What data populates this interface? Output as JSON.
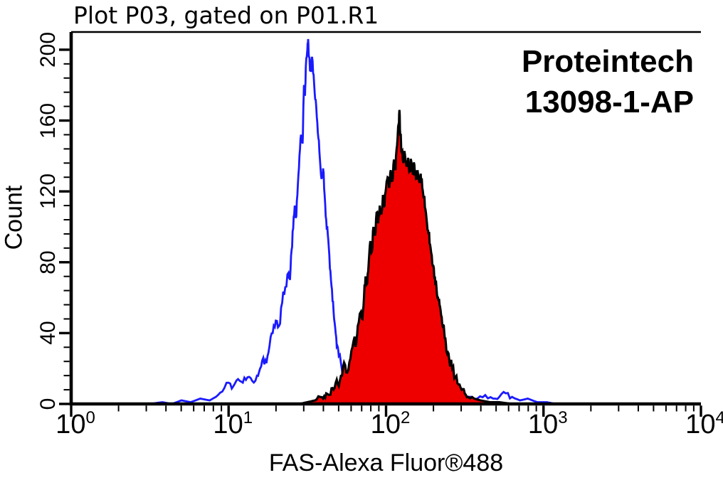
{
  "annotations": {
    "brand": "Proteintech",
    "catalog": "13098-1-AP"
  },
  "chart_data": {
    "type": "area",
    "title": "Plot P03, gated on P01.R1",
    "xlabel": "FAS-Alexa Fluor®488",
    "ylabel": "Count",
    "x_scale": "log10",
    "xlim_log10": [
      0,
      4
    ],
    "ylim": [
      0,
      210
    ],
    "x_tick_base": "10",
    "x_ticks_log10": [
      0,
      1,
      2,
      3,
      4
    ],
    "y_ticks": [
      0,
      40,
      80,
      120,
      160,
      200
    ],
    "y_minor_step": 8,
    "grid": false,
    "legend": null,
    "annotations": [
      "Proteintech",
      "13098-1-AP"
    ],
    "colors": {
      "control": "#1a1aff",
      "sample_fill": "#ee0000",
      "sample_stroke": "#000000",
      "axis": "#000000"
    },
    "series": [
      {
        "name": "control (unfilled blue)",
        "style": "line",
        "color": "#1a1aff",
        "points_log10x_count": [
          [
            0.5,
            0
          ],
          [
            0.58,
            1
          ],
          [
            0.64,
            0
          ],
          [
            0.7,
            2
          ],
          [
            0.76,
            1
          ],
          [
            0.82,
            3
          ],
          [
            0.88,
            2
          ],
          [
            0.92,
            4
          ],
          [
            0.96,
            7
          ],
          [
            1.0,
            12
          ],
          [
            1.03,
            10
          ],
          [
            1.06,
            14
          ],
          [
            1.09,
            12
          ],
          [
            1.12,
            15
          ],
          [
            1.15,
            13
          ],
          [
            1.18,
            16
          ],
          [
            1.2,
            20
          ],
          [
            1.22,
            26
          ],
          [
            1.24,
            23
          ],
          [
            1.26,
            33
          ],
          [
            1.28,
            40
          ],
          [
            1.3,
            47
          ],
          [
            1.32,
            44
          ],
          [
            1.34,
            57
          ],
          [
            1.36,
            66
          ],
          [
            1.38,
            74
          ],
          [
            1.39,
            70
          ],
          [
            1.4,
            87
          ],
          [
            1.41,
            99
          ],
          [
            1.42,
            112
          ],
          [
            1.43,
            106
          ],
          [
            1.44,
            124
          ],
          [
            1.45,
            140
          ],
          [
            1.46,
            152
          ],
          [
            1.47,
            147
          ],
          [
            1.475,
            168
          ],
          [
            1.48,
            180
          ],
          [
            1.485,
            174
          ],
          [
            1.49,
            190
          ],
          [
            1.5,
            200
          ],
          [
            1.505,
            206
          ],
          [
            1.51,
            196
          ],
          [
            1.52,
            188
          ],
          [
            1.53,
            196
          ],
          [
            1.54,
            186
          ],
          [
            1.55,
            172
          ],
          [
            1.56,
            162
          ],
          [
            1.57,
            150
          ],
          [
            1.58,
            138
          ],
          [
            1.59,
            127
          ],
          [
            1.6,
            133
          ],
          [
            1.61,
            118
          ],
          [
            1.62,
            104
          ],
          [
            1.63,
            96
          ],
          [
            1.64,
            84
          ],
          [
            1.65,
            70
          ],
          [
            1.66,
            58
          ],
          [
            1.67,
            48
          ],
          [
            1.68,
            40
          ],
          [
            1.69,
            33
          ],
          [
            1.7,
            27
          ],
          [
            1.72,
            19
          ],
          [
            1.74,
            13
          ],
          [
            1.76,
            9
          ],
          [
            1.78,
            7
          ],
          [
            1.8,
            5
          ],
          [
            1.84,
            4
          ],
          [
            1.88,
            3
          ],
          [
            1.93,
            2
          ],
          [
            2.0,
            2
          ],
          [
            2.06,
            3
          ],
          [
            2.12,
            2
          ],
          [
            2.2,
            3
          ],
          [
            2.3,
            2
          ],
          [
            2.4,
            3
          ],
          [
            2.48,
            2
          ],
          [
            2.52,
            4
          ],
          [
            2.58,
            3
          ],
          [
            2.63,
            5
          ],
          [
            2.68,
            3
          ],
          [
            2.72,
            4
          ],
          [
            2.76,
            6
          ],
          [
            2.8,
            4
          ],
          [
            2.85,
            2
          ],
          [
            2.9,
            3
          ],
          [
            2.96,
            1
          ],
          [
            3.02,
            1
          ],
          [
            3.08,
            0
          ]
        ]
      },
      {
        "name": "FAS-Alexa Fluor 488 (red filled)",
        "style": "filled",
        "fill": "#ee0000",
        "stroke": "#000000",
        "points_log10x_count": [
          [
            1.45,
            0
          ],
          [
            1.5,
            1
          ],
          [
            1.55,
            2
          ],
          [
            1.58,
            4
          ],
          [
            1.6,
            3
          ],
          [
            1.62,
            6
          ],
          [
            1.64,
            5
          ],
          [
            1.66,
            9
          ],
          [
            1.68,
            12
          ],
          [
            1.7,
            10
          ],
          [
            1.72,
            16
          ],
          [
            1.74,
            22
          ],
          [
            1.76,
            19
          ],
          [
            1.78,
            30
          ],
          [
            1.8,
            38
          ],
          [
            1.81,
            34
          ],
          [
            1.82,
            44
          ],
          [
            1.84,
            52
          ],
          [
            1.85,
            48
          ],
          [
            1.86,
            60
          ],
          [
            1.87,
            72
          ],
          [
            1.88,
            68
          ],
          [
            1.89,
            80
          ],
          [
            1.9,
            92
          ],
          [
            1.91,
            86
          ],
          [
            1.92,
            100
          ],
          [
            1.93,
            95
          ],
          [
            1.94,
            108
          ],
          [
            1.95,
            102
          ],
          [
            1.96,
            112
          ],
          [
            1.97,
            107
          ],
          [
            1.98,
            118
          ],
          [
            1.99,
            112
          ],
          [
            2.0,
            122
          ],
          [
            2.01,
            128
          ],
          [
            2.02,
            122
          ],
          [
            2.03,
            132
          ],
          [
            2.04,
            126
          ],
          [
            2.05,
            138
          ],
          [
            2.06,
            132
          ],
          [
            2.07,
            146
          ],
          [
            2.08,
            158
          ],
          [
            2.085,
            166
          ],
          [
            2.09,
            152
          ],
          [
            2.1,
            142
          ],
          [
            2.11,
            136
          ],
          [
            2.12,
            141
          ],
          [
            2.13,
            134
          ],
          [
            2.14,
            139
          ],
          [
            2.15,
            132
          ],
          [
            2.16,
            137
          ],
          [
            2.17,
            130
          ],
          [
            2.18,
            135
          ],
          [
            2.19,
            127
          ],
          [
            2.2,
            132
          ],
          [
            2.21,
            126
          ],
          [
            2.22,
            130
          ],
          [
            2.23,
            122
          ],
          [
            2.24,
            116
          ],
          [
            2.25,
            110
          ],
          [
            2.26,
            102
          ],
          [
            2.27,
            96
          ],
          [
            2.28,
            90
          ],
          [
            2.29,
            84
          ],
          [
            2.3,
            78
          ],
          [
            2.31,
            72
          ],
          [
            2.32,
            66
          ],
          [
            2.33,
            60
          ],
          [
            2.34,
            56
          ],
          [
            2.35,
            50
          ],
          [
            2.36,
            44
          ],
          [
            2.37,
            40
          ],
          [
            2.38,
            34
          ],
          [
            2.39,
            30
          ],
          [
            2.4,
            26
          ],
          [
            2.42,
            20
          ],
          [
            2.44,
            15
          ],
          [
            2.46,
            11
          ],
          [
            2.48,
            8
          ],
          [
            2.5,
            6
          ],
          [
            2.52,
            4
          ],
          [
            2.56,
            3
          ],
          [
            2.6,
            2
          ],
          [
            2.66,
            1
          ],
          [
            2.72,
            1
          ],
          [
            2.8,
            0
          ]
        ]
      }
    ],
    "render": {
      "jitter_seed": 11,
      "jitter_amp": 3.5
    }
  }
}
